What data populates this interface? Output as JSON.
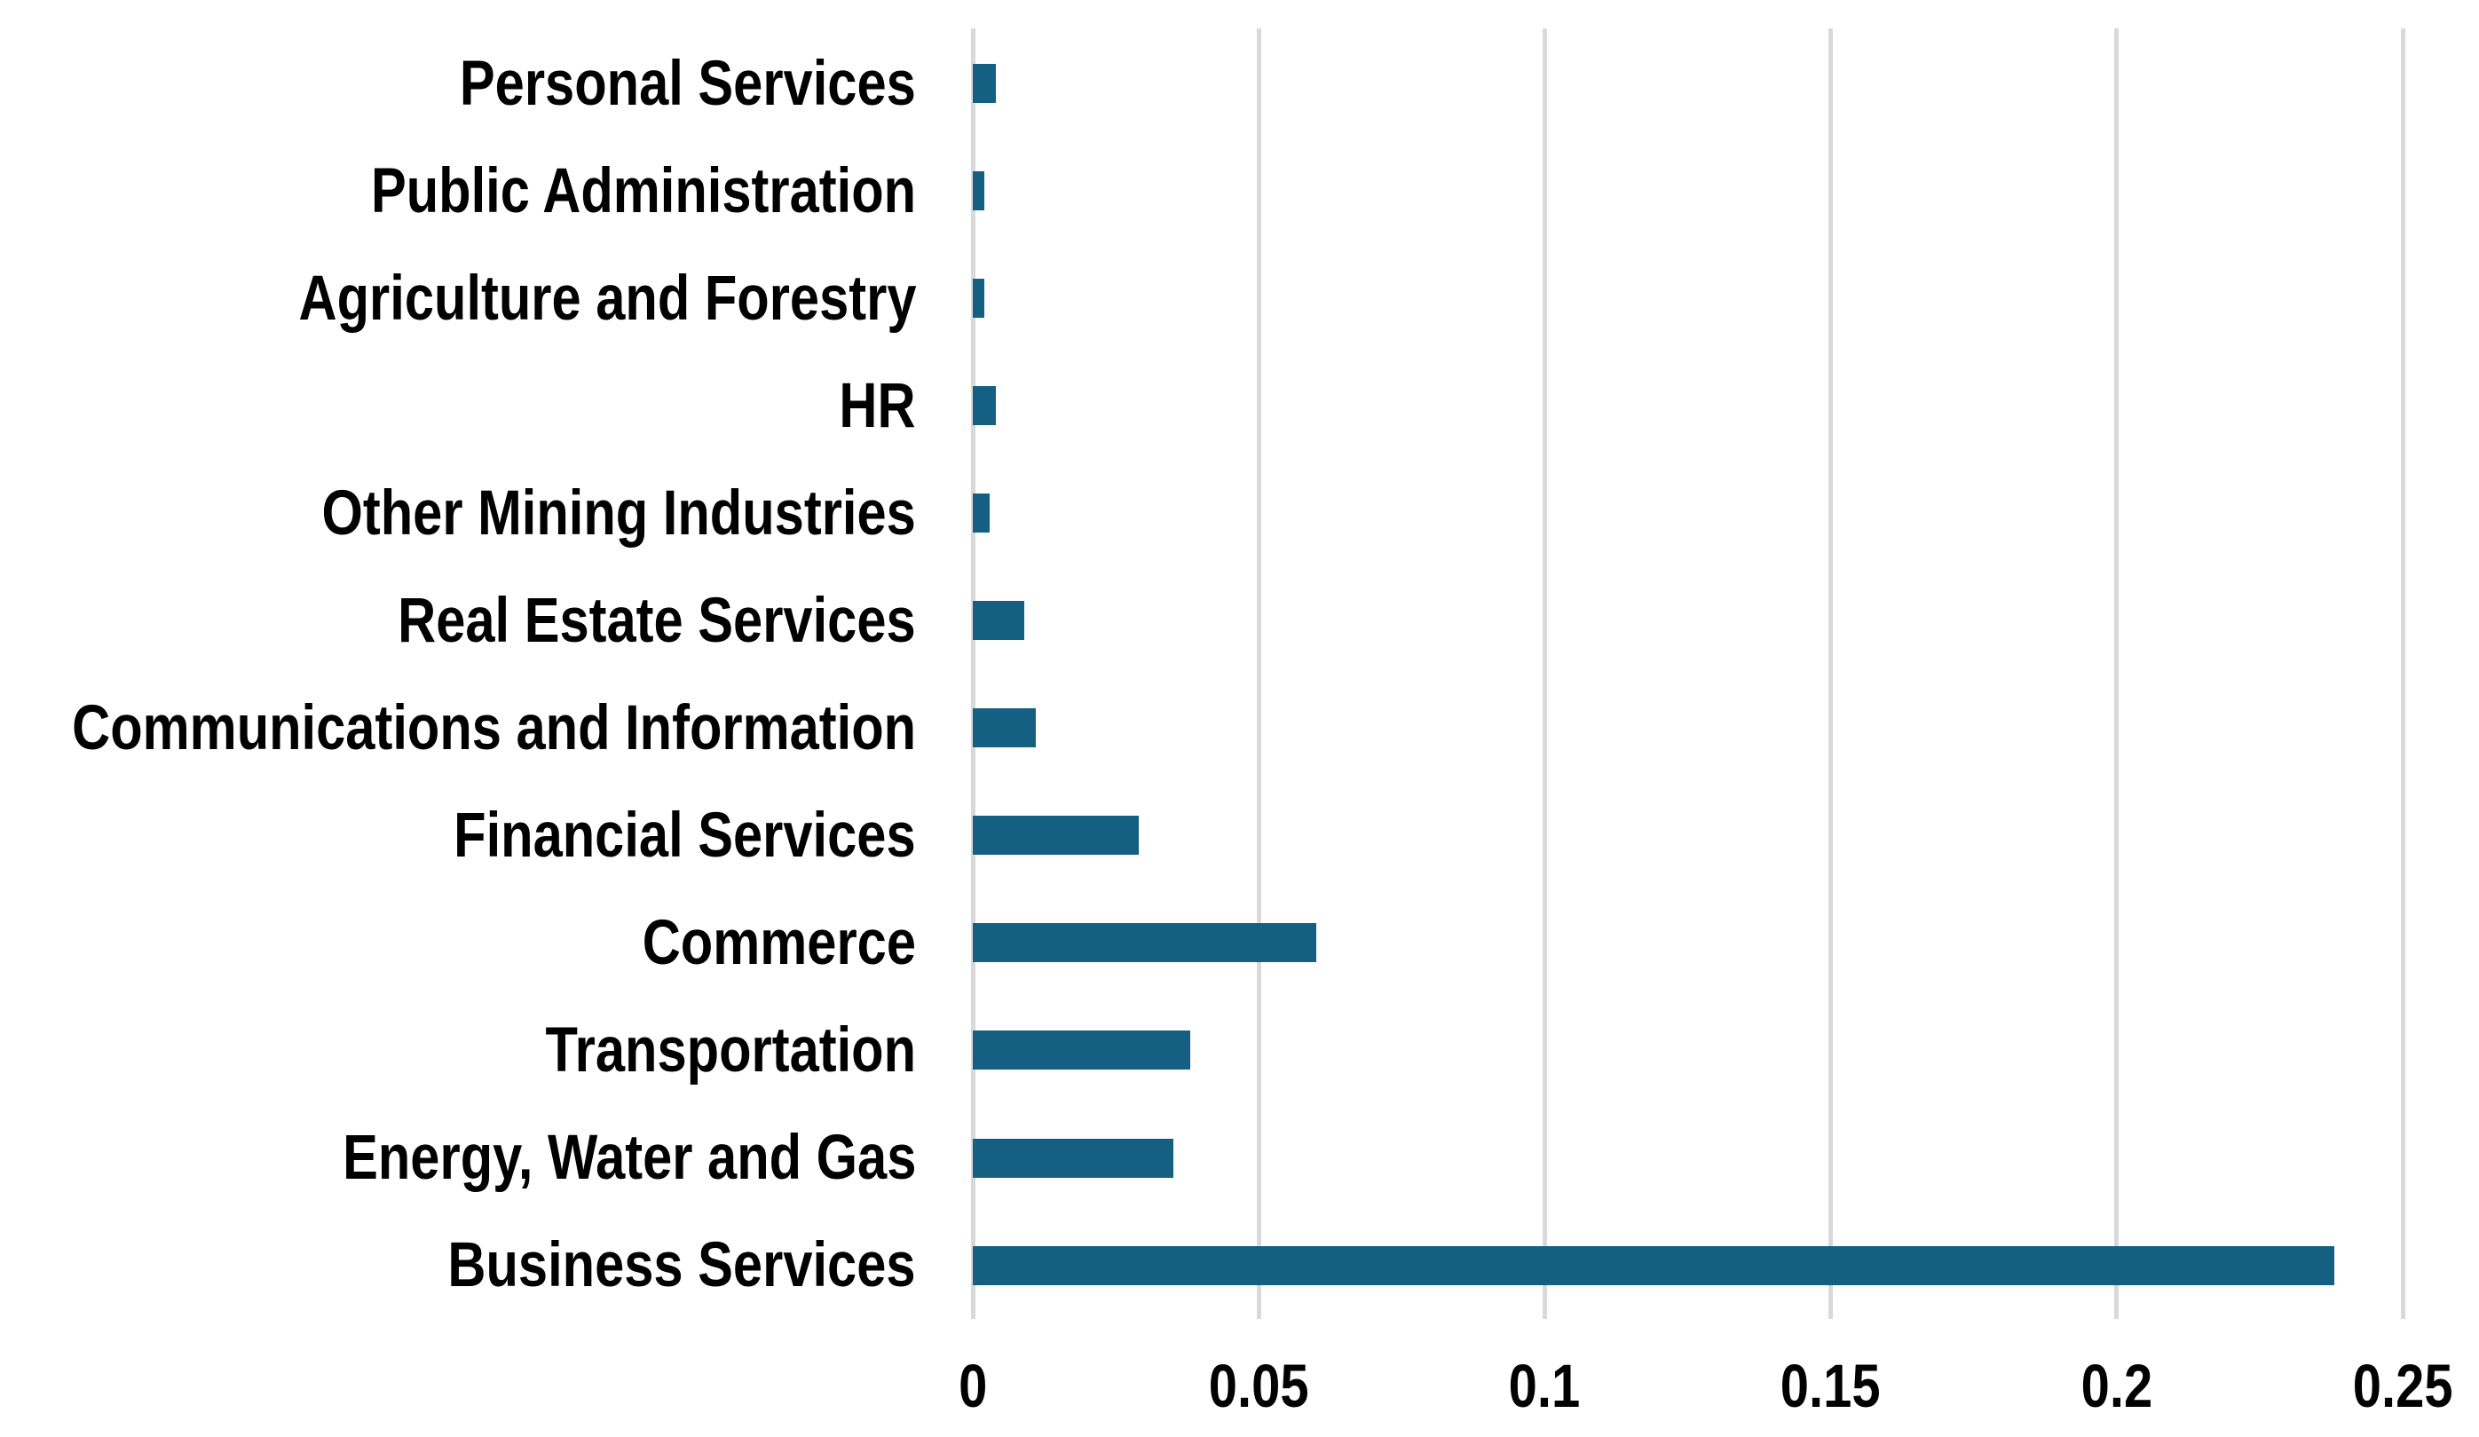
{
  "chart_data": {
    "type": "bar",
    "orientation": "horizontal",
    "title": "",
    "xlabel": "",
    "ylabel": "",
    "categories": [
      "Personal Services",
      "Public Administration",
      "Agriculture and Forestry",
      "HR",
      "Other Mining Industries",
      "Real Estate Services",
      "Communications and Information",
      "Financial Services",
      "Commerce",
      "Transportation",
      "Energy, Water and Gas",
      "Business Services"
    ],
    "values": [
      0.004,
      0.002,
      0.002,
      0.004,
      0.003,
      0.009,
      0.011,
      0.029,
      0.06,
      0.038,
      0.035,
      0.238
    ],
    "xlim": [
      0,
      0.25
    ],
    "x_ticks": [
      "0",
      "0.05",
      "0.1",
      "0.15",
      "0.2",
      "0.25"
    ],
    "x_tick_values": [
      0,
      0.05,
      0.1,
      0.15,
      0.2,
      0.25
    ],
    "grid": true,
    "legend": false,
    "bar_color": "#156082",
    "gridline_color": "#D9D9D9",
    "text_color": "#000000",
    "background_color": "#FFFFFF"
  }
}
